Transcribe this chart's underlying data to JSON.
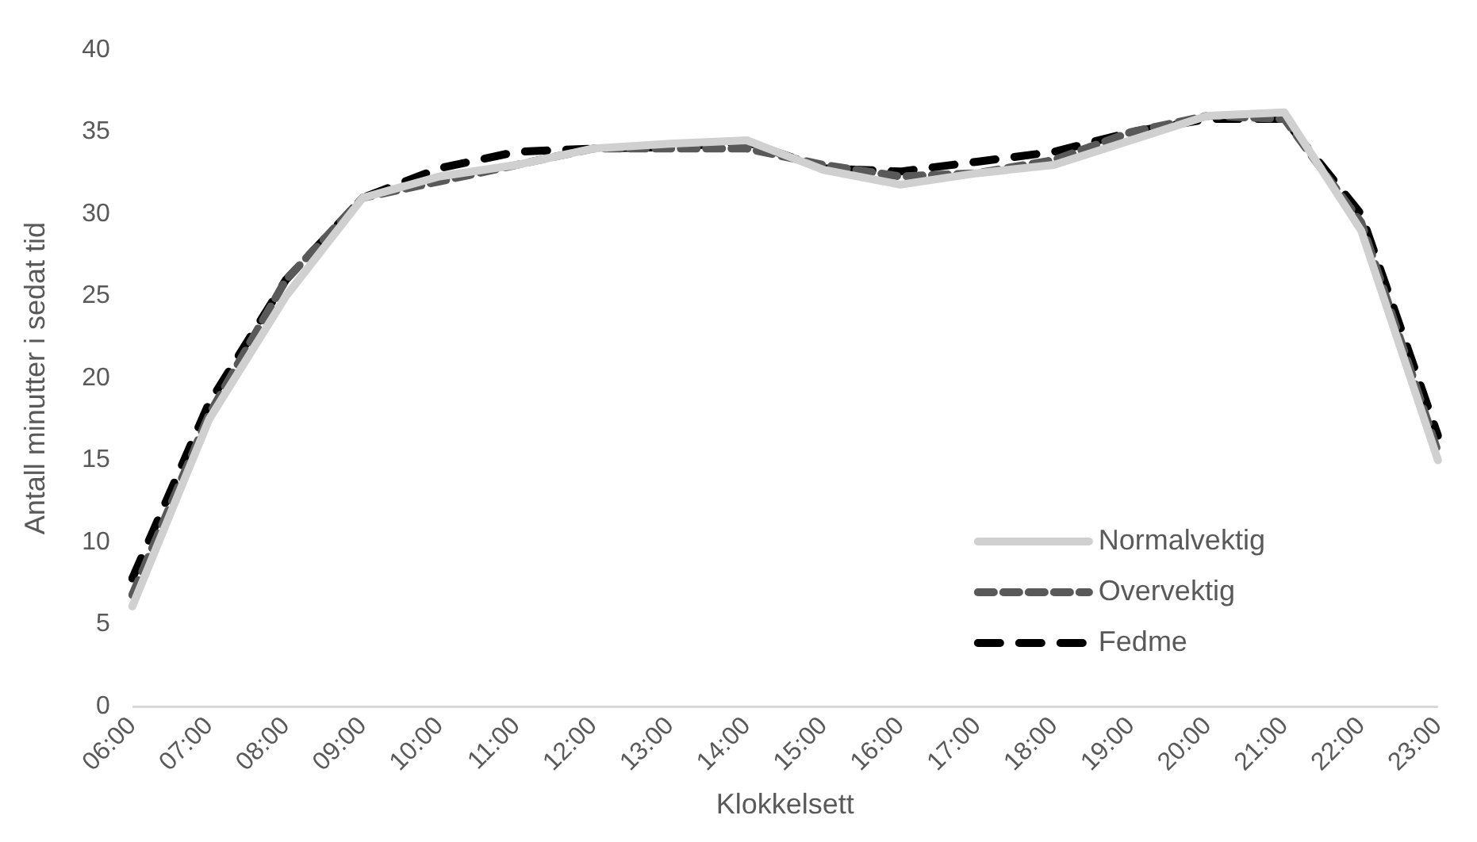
{
  "chart_data": {
    "type": "line",
    "xlabel": "Klokkelsett",
    "ylabel": "Antall minutter i sedat tid",
    "categories": [
      "06:00",
      "07:00",
      "08:00",
      "09:00",
      "10:00",
      "11:00",
      "12:00",
      "13:00",
      "14:00",
      "15:00",
      "16:00",
      "17:00",
      "18:00",
      "19:00",
      "20:00",
      "21:00",
      "22:00",
      "23:00"
    ],
    "ylim": [
      0,
      40
    ],
    "yticks": [
      0,
      5,
      10,
      15,
      20,
      25,
      30,
      35,
      40
    ],
    "grid": false,
    "legend": "bottom right",
    "marker": "none",
    "series": [
      {
        "name": "Normalvektig",
        "color": "#d0d0d0",
        "line_style": "solid",
        "values": [
          6.1,
          17.5,
          25,
          31,
          32.3,
          33,
          34,
          34.3,
          34.5,
          32.7,
          31.8,
          32.5,
          33,
          34.5,
          36,
          36.2,
          29,
          15
        ]
      },
      {
        "name": "Overvektig",
        "color": "#595959",
        "line_style": "dashed",
        "values": [
          6.8,
          17.8,
          26,
          31,
          32,
          33,
          34,
          34,
          34,
          33,
          32.3,
          32.5,
          33.3,
          35,
          36,
          35.8,
          29.5,
          15.5
        ]
      },
      {
        "name": "Fedme",
        "color": "#000000",
        "line_style": "dashed",
        "values": [
          7.8,
          18.5,
          26,
          31,
          32.8,
          33.8,
          34,
          34.1,
          34.4,
          32.8,
          32.6,
          33.2,
          33.8,
          35,
          35.8,
          35.8,
          30,
          16.5
        ]
      }
    ]
  }
}
